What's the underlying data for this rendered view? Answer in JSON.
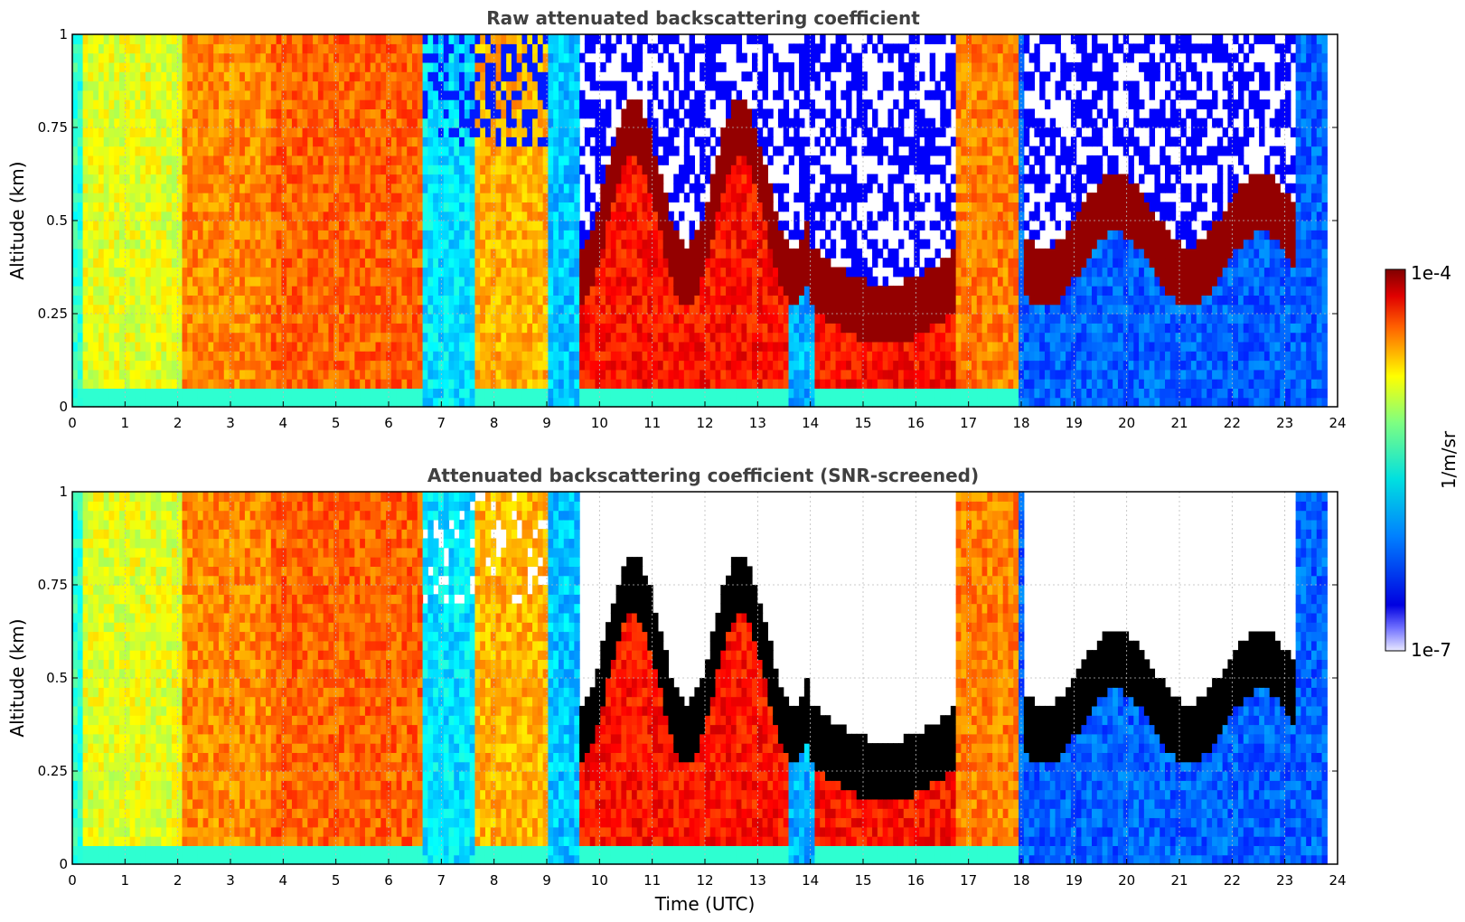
{
  "chart_data": [
    {
      "type": "heatmap",
      "title": "Raw attenuated backscattering coefficient",
      "xlabel": "",
      "ylabel": "Altitude (km)",
      "xlim": [
        0,
        24
      ],
      "ylim": [
        0,
        1
      ],
      "x_ticks": [
        "0",
        "1",
        "2",
        "3",
        "4",
        "5",
        "6",
        "7",
        "8",
        "9",
        "10",
        "11",
        "12",
        "13",
        "14",
        "15",
        "16",
        "17",
        "18",
        "19",
        "20",
        "21",
        "22",
        "23",
        "24"
      ],
      "y_ticks": [
        "0",
        "0.25",
        "0.5",
        "0.75",
        "1"
      ],
      "y_tick_values": [
        0,
        0.25,
        0.5,
        0.75,
        1
      ],
      "grid": true,
      "screened": false,
      "data_end_hour": 23.8
    },
    {
      "type": "heatmap",
      "title": "Attenuated backscattering coefficient (SNR-screened)",
      "xlabel": "Time (UTC)",
      "ylabel": "Altitude (km)",
      "xlim": [
        0,
        24
      ],
      "ylim": [
        0,
        1
      ],
      "x_ticks": [
        "0",
        "1",
        "2",
        "3",
        "4",
        "5",
        "6",
        "7",
        "8",
        "9",
        "10",
        "11",
        "12",
        "13",
        "14",
        "15",
        "16",
        "17",
        "18",
        "19",
        "20",
        "21",
        "22",
        "23",
        "24"
      ],
      "y_ticks": [
        "0",
        "0.25",
        "0.5",
        "0.75",
        "1"
      ],
      "y_tick_values": [
        0,
        0.25,
        0.5,
        0.75,
        1
      ],
      "grid": true,
      "screened": true,
      "data_end_hour": 23.8
    }
  ],
  "colorbar": {
    "label": "1/m/sr",
    "max_label": "1e-4",
    "min_label": "1e-7",
    "scale": "log",
    "colormap": "jet"
  }
}
